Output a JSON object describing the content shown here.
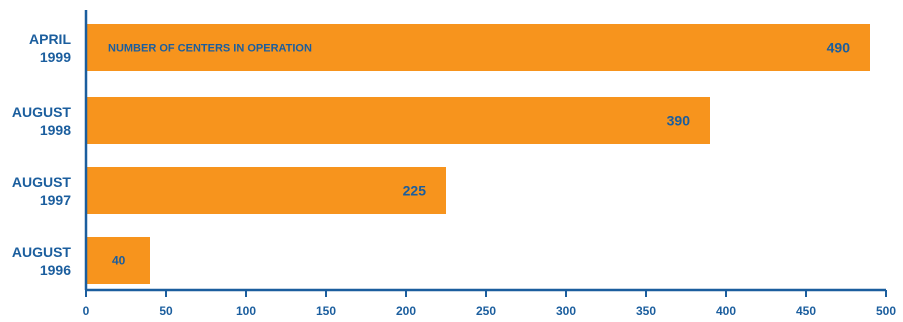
{
  "chart_data": {
    "type": "bar",
    "orientation": "horizontal",
    "series_label": "NUMBER OF CENTERS IN OPERATION",
    "categories": [
      {
        "line1": "APRIL",
        "line2": "1999"
      },
      {
        "line1": "AUGUST",
        "line2": "1998"
      },
      {
        "line1": "AUGUST",
        "line2": "1997"
      },
      {
        "line1": "AUGUST",
        "line2": "1996"
      }
    ],
    "values": [
      490,
      390,
      225,
      40
    ],
    "xlim": [
      0,
      500
    ],
    "xticks": [
      0,
      50,
      100,
      150,
      200,
      250,
      300,
      350,
      400,
      450,
      500
    ],
    "grid": false,
    "title": "",
    "xlabel": "",
    "ylabel": ""
  },
  "colors": {
    "bar": "#F7941D",
    "text": "#1B5E9E",
    "axis": "#1B5E9E"
  }
}
